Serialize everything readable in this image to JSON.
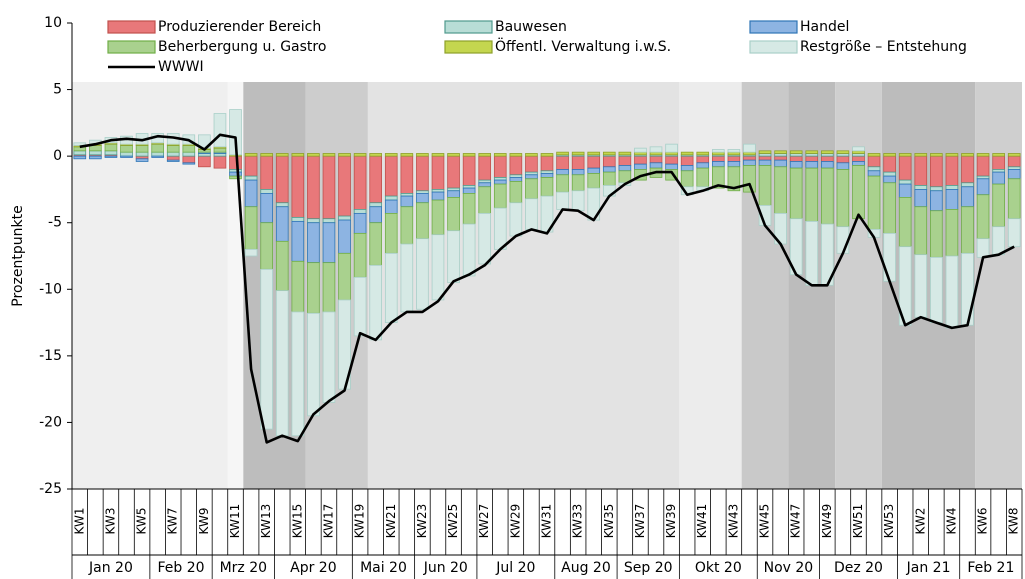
{
  "chart_data": {
    "type": "bar",
    "stacked": true,
    "y_label": "Prozentpunkte",
    "ylim": [
      -25,
      10
    ],
    "yticks": [
      -25,
      -20,
      -15,
      -10,
      -5,
      0,
      5,
      10
    ],
    "categories": [
      "KW1",
      null,
      "KW3",
      null,
      "KW5",
      null,
      "KW7",
      null,
      "KW9",
      null,
      "KW11",
      null,
      "KW13",
      null,
      "KW15",
      null,
      "KW17",
      null,
      "KW19",
      null,
      "KW21",
      null,
      "KW23",
      null,
      "KW25",
      null,
      "KW27",
      null,
      "KW29",
      null,
      "KW31",
      null,
      "KW33",
      null,
      "KW35",
      null,
      "KW37",
      null,
      "KW39",
      null,
      "KW41",
      null,
      "KW43",
      null,
      "KW45",
      null,
      "KW47",
      null,
      "KW49",
      null,
      "KW51",
      null,
      "KW53",
      null,
      "KW2",
      null,
      "KW4",
      null,
      "KW6",
      null,
      "KW8"
    ],
    "months": [
      {
        "label": "Jan 20",
        "weeks": 5
      },
      {
        "label": "Feb 20",
        "weeks": 4
      },
      {
        "label": "Mrz 20",
        "weeks": 4
      },
      {
        "label": "Apr 20",
        "weeks": 5
      },
      {
        "label": "Mai 20",
        "weeks": 4
      },
      {
        "label": "Jun 20",
        "weeks": 4
      },
      {
        "label": "Jul 20",
        "weeks": 5
      },
      {
        "label": "Aug 20",
        "weeks": 4
      },
      {
        "label": "Sep 20",
        "weeks": 4
      },
      {
        "label": "Okt 20",
        "weeks": 5
      },
      {
        "label": "Nov 20",
        "weeks": 4
      },
      {
        "label": "Dez 20",
        "weeks": 5
      },
      {
        "label": "Jan 21",
        "weeks": 4
      },
      {
        "label": "Feb 21",
        "weeks": 4
      }
    ],
    "shading": [
      {
        "from": 0,
        "to": 10,
        "color": "#efefef"
      },
      {
        "from": 10,
        "to": 11,
        "color": "#f6f6f6"
      },
      {
        "from": 11,
        "to": 15,
        "color": "#bdbdbd"
      },
      {
        "from": 15,
        "to": 19,
        "color": "#cdcdcd"
      },
      {
        "from": 19,
        "to": 39,
        "color": "#e3e3e3"
      },
      {
        "from": 39,
        "to": 43,
        "color": "#ececec"
      },
      {
        "from": 43,
        "to": 46,
        "color": "#c9c9c9"
      },
      {
        "from": 46,
        "to": 49,
        "color": "#bcbcbc"
      },
      {
        "from": 49,
        "to": 52,
        "color": "#cfcfcf"
      },
      {
        "from": 52,
        "to": 58,
        "color": "#bcbcbc"
      },
      {
        "from": 58,
        "to": 61,
        "color": "#cfcfcf"
      }
    ],
    "series": [
      {
        "name": "Produzierender Bereich",
        "color": "#e8787a",
        "border": "#c0504d",
        "values": [
          0.1,
          0.1,
          0.1,
          0,
          -0.2,
          0,
          -0.3,
          -0.5,
          -0.8,
          -0.9,
          -1.0,
          -1.5,
          -2.5,
          -3.5,
          -4.6,
          -4.7,
          -4.7,
          -4.5,
          -4.0,
          -3.5,
          -3.0,
          -2.8,
          -2.6,
          -2.5,
          -2.4,
          -2.2,
          -1.8,
          -1.6,
          -1.4,
          -1.2,
          -1.1,
          -1.0,
          -1.0,
          -0.9,
          -0.8,
          -0.7,
          -0.6,
          -0.5,
          -0.6,
          -0.7,
          -0.5,
          -0.4,
          -0.4,
          -0.3,
          -0.3,
          -0.3,
          -0.4,
          -0.4,
          -0.4,
          -0.5,
          -0.4,
          -0.8,
          -1.2,
          -1.8,
          -2.2,
          -2.3,
          -2.2,
          -2.0,
          -1.5,
          -1.0,
          -0.8
        ]
      },
      {
        "name": "Bauwesen",
        "color": "#b8ddd6",
        "border": "#4f9a8c",
        "values": [
          0.3,
          0.3,
          0.3,
          0.3,
          0.3,
          0.3,
          0.3,
          0.3,
          0.2,
          0.2,
          -0.2,
          -0.3,
          -0.3,
          -0.3,
          -0.3,
          -0.3,
          -0.3,
          -0.3,
          -0.3,
          -0.3,
          -0.3,
          -0.2,
          -0.2,
          -0.2,
          -0.2,
          -0.2,
          -0.2,
          -0.2,
          -0.2,
          -0.2,
          -0.2,
          0.1,
          0.1,
          0.1,
          0.1,
          0.1,
          0.1,
          0.1,
          0.1,
          0.1,
          0.1,
          0.1,
          0.1,
          0.1,
          0.2,
          0.2,
          0.2,
          0.2,
          0.2,
          0.2,
          0.2,
          -0.3,
          -0.3,
          -0.3,
          -0.3,
          -0.3,
          -0.3,
          -0.3,
          -0.2,
          -0.2,
          -0.2
        ]
      },
      {
        "name": "Handel",
        "color": "#8db4e2",
        "border": "#2e75b6",
        "values": [
          -0.2,
          -0.2,
          -0.1,
          -0.1,
          -0.2,
          -0.1,
          -0.1,
          -0.1,
          0.1,
          0.1,
          -0.3,
          -2.0,
          -2.2,
          -2.6,
          -3.0,
          -3.0,
          -3.0,
          -2.5,
          -1.5,
          -1.2,
          -1.0,
          -0.8,
          -0.7,
          -0.6,
          -0.5,
          -0.4,
          -0.3,
          -0.3,
          -0.3,
          -0.3,
          -0.3,
          -0.4,
          -0.4,
          -0.4,
          -0.4,
          -0.4,
          -0.4,
          -0.4,
          -0.4,
          -0.4,
          -0.4,
          -0.4,
          -0.4,
          -0.4,
          -0.4,
          -0.5,
          -0.5,
          -0.5,
          -0.5,
          -0.5,
          -0.3,
          -0.4,
          -0.5,
          -1.0,
          -1.3,
          -1.5,
          -1.5,
          -1.5,
          -1.2,
          -0.9,
          -0.7
        ]
      },
      {
        "name": "Beherbergung u. Gastro",
        "color": "#a9d18e",
        "border": "#70ad47",
        "values": [
          0.3,
          0.4,
          0.5,
          0.5,
          0.5,
          0.6,
          0.5,
          0.5,
          0.2,
          0.3,
          -0.2,
          -3.2,
          -3.5,
          -3.7,
          -3.8,
          -3.8,
          -3.7,
          -3.5,
          -3.3,
          -3.2,
          -3.0,
          -2.8,
          -2.7,
          -2.6,
          -2.5,
          -2.3,
          -2.0,
          -1.8,
          -1.6,
          -1.5,
          -1.4,
          -1.3,
          -1.2,
          -1.1,
          -1.0,
          -0.9,
          -0.8,
          -0.7,
          -0.8,
          -1.2,
          -1.4,
          -1.6,
          -1.8,
          -2.0,
          -3.0,
          -3.5,
          -3.8,
          -4.0,
          -4.2,
          -4.3,
          -4.0,
          -4.0,
          -3.8,
          -3.7,
          -3.6,
          -3.5,
          -3.5,
          -3.5,
          -3.3,
          -3.2,
          -3.0
        ]
      },
      {
        "name": "Öffentl. Verwaltung i.w.S.",
        "color": "#c4d64f",
        "border": "#8ea02a",
        "values": [
          0.1,
          0.1,
          0.1,
          0.1,
          0.1,
          0.1,
          0.1,
          0.1,
          0.1,
          0.1,
          0.1,
          0.2,
          0.2,
          0.2,
          0.2,
          0.2,
          0.2,
          0.2,
          0.2,
          0.2,
          0.2,
          0.2,
          0.2,
          0.2,
          0.2,
          0.2,
          0.2,
          0.2,
          0.2,
          0.2,
          0.2,
          0.2,
          0.2,
          0.2,
          0.2,
          0.2,
          0.2,
          0.2,
          0.2,
          0.2,
          0.2,
          0.2,
          0.2,
          0.2,
          0.2,
          0.2,
          0.2,
          0.2,
          0.2,
          0.2,
          0.2,
          0.2,
          0.2,
          0.2,
          0.2,
          0.2,
          0.2,
          0.2,
          0.2,
          0.2,
          0.2
        ]
      },
      {
        "name": "Restgröße – Entstehung",
        "color": "#d6e9e5",
        "border": "#a9cfc8",
        "values": [
          0.2,
          0.3,
          0.4,
          0.6,
          0.8,
          0.7,
          0.8,
          0.7,
          1.0,
          2.5,
          3.4,
          -0.5,
          -12.0,
          -10.9,
          -9.3,
          -7.7,
          -6.8,
          -6.7,
          -4.4,
          -5.6,
          -5.2,
          -5.1,
          -5.3,
          -4.9,
          -3.9,
          -3.9,
          -3.8,
          -3.1,
          -2.5,
          -2.3,
          -2.7,
          -1.3,
          -1.5,
          -2.4,
          -0.8,
          -0.2,
          0.3,
          0.4,
          0.6,
          -0.6,
          -0.3,
          0.2,
          0.2,
          0.6,
          -1.5,
          -2.3,
          -4.2,
          -4.8,
          -4.6,
          -2.0,
          0.3,
          -0.6,
          -3.6,
          -5.9,
          -4.7,
          -4.9,
          -5.4,
          -5.4,
          -1.4,
          -2.1,
          -2.1
        ]
      },
      {
        "name": "WWWI",
        "type": "line",
        "color": "#000000",
        "values": [
          0.7,
          0.9,
          1.2,
          1.3,
          1.2,
          1.5,
          1.4,
          1.2,
          0.5,
          1.6,
          1.4,
          -16.0,
          -21.5,
          -21.0,
          -21.4,
          -19.4,
          -18.4,
          -17.6,
          -13.3,
          -13.8,
          -12.5,
          -11.7,
          -11.7,
          -10.9,
          -9.4,
          -8.9,
          -8.2,
          -7.0,
          -6.0,
          -5.5,
          -5.8,
          -4.0,
          -4.1,
          -4.8,
          -3.0,
          -2.1,
          -1.5,
          -1.2,
          -1.2,
          -2.9,
          -2.6,
          -2.2,
          -2.4,
          -2.1,
          -5.2,
          -6.6,
          -8.9,
          -9.7,
          -9.7,
          -7.3,
          -4.4,
          -6.1,
          -9.4,
          -12.7,
          -12.1,
          -12.5,
          -12.9,
          -12.7,
          -7.6,
          -7.4,
          -6.8
        ]
      }
    ]
  }
}
